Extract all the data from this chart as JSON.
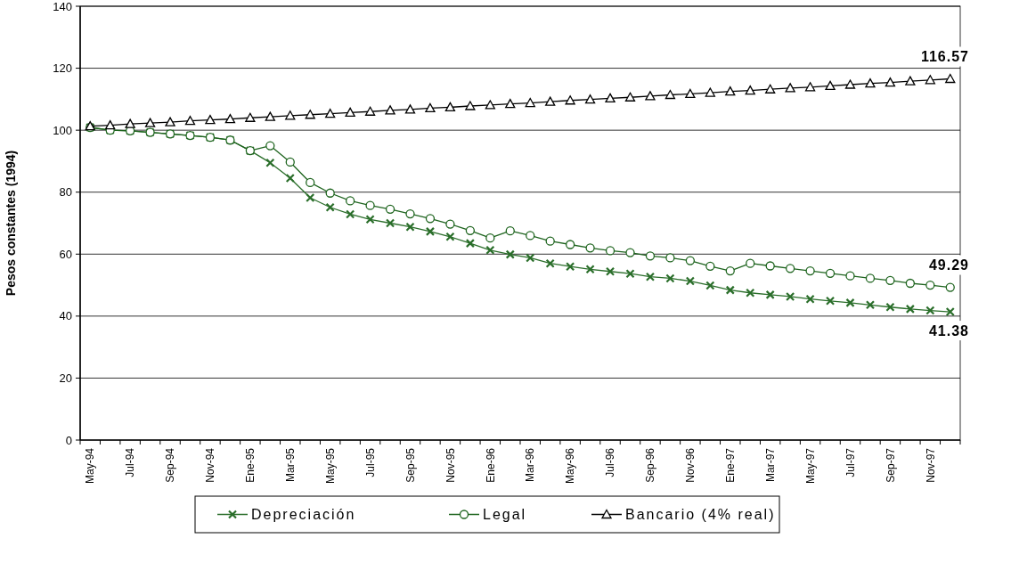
{
  "chart_data": {
    "type": "line",
    "ylabel": "Pesos constantes (1994)",
    "categories": [
      "May-94",
      null,
      "Jul-94",
      null,
      "Sep-94",
      null,
      "Nov-94",
      null,
      "Ene-95",
      null,
      "Mar-95",
      null,
      "May-95",
      null,
      "Jul-95",
      null,
      "Sep-95",
      null,
      "Nov-95",
      null,
      "Ene-96",
      null,
      "Mar-96",
      null,
      "May-96",
      null,
      "Jul-96",
      null,
      "Sep-96",
      null,
      "Nov-96",
      null,
      "Ene-97",
      null,
      "Mar-97",
      null,
      "May-97",
      null,
      "Jul-97",
      null,
      "Sep-97",
      null,
      "Nov-97",
      null
    ],
    "series": [
      {
        "name": "Depreciación",
        "color": "#2a6e2a",
        "marker": "cross",
        "values": [
          100.9,
          100,
          99.8,
          99.3,
          98.8,
          98.3,
          97.7,
          96.8,
          93.4,
          89.5,
          84.5,
          78.2,
          75.1,
          72.9,
          71.2,
          70.0,
          68.8,
          67.3,
          65.6,
          63.5,
          61.3,
          59.9,
          58.8,
          57.0,
          56.0,
          55.1,
          54.4,
          53.7,
          52.7,
          52.2,
          51.3,
          49.9,
          48.4,
          47.5,
          46.9,
          46.3,
          45.5,
          44.9,
          44.3,
          43.6,
          42.9,
          42.3,
          41.8,
          41.38
        ],
        "value_labels": [
          null,
          null,
          null,
          null,
          null,
          null,
          null,
          null,
          null,
          null,
          null,
          null,
          null,
          null,
          null,
          null,
          null,
          null,
          null,
          null,
          null,
          null,
          null,
          null,
          null,
          null,
          null,
          null,
          null,
          null,
          null,
          null,
          null,
          null,
          null,
          null,
          null,
          null,
          null,
          null,
          null,
          null,
          null,
          "41.38"
        ]
      },
      {
        "name": "Legal",
        "color": "#1e641e",
        "marker": "circle",
        "values": [
          100.9,
          100,
          99.8,
          99.3,
          98.8,
          98.3,
          97.7,
          96.8,
          93.4,
          95.0,
          89.7,
          83.1,
          79.7,
          77.2,
          75.7,
          74.5,
          73.0,
          71.5,
          69.7,
          67.6,
          65.2,
          67.5,
          66.0,
          64.2,
          63.1,
          62.0,
          61.1,
          60.5,
          59.4,
          58.8,
          57.9,
          56.1,
          54.6,
          57.0,
          56.2,
          55.4,
          54.6,
          53.8,
          53.0,
          52.2,
          51.5,
          50.6,
          50.0,
          49.29
        ],
        "value_labels": [
          null,
          null,
          null,
          null,
          null,
          null,
          null,
          null,
          null,
          null,
          null,
          null,
          null,
          null,
          null,
          null,
          null,
          null,
          null,
          null,
          null,
          null,
          null,
          null,
          null,
          null,
          null,
          null,
          null,
          null,
          null,
          null,
          null,
          null,
          null,
          null,
          null,
          null,
          null,
          null,
          null,
          null,
          null,
          "49.29"
        ]
      },
      {
        "name": "Bancario (4% real)",
        "color": "#000000",
        "marker": "triangle",
        "values": [
          101.3,
          101.6,
          102.0,
          102.3,
          102.6,
          103.0,
          103.3,
          103.6,
          104.0,
          104.3,
          104.7,
          105.0,
          105.3,
          105.7,
          106.0,
          106.4,
          106.7,
          107.1,
          107.4,
          107.8,
          108.1,
          108.5,
          108.8,
          109.2,
          109.6,
          109.9,
          110.3,
          110.6,
          111.0,
          111.4,
          111.7,
          112.1,
          112.5,
          112.8,
          113.2,
          113.6,
          113.9,
          114.3,
          114.7,
          115.1,
          115.4,
          115.8,
          116.2,
          116.57
        ],
        "value_labels": [
          null,
          null,
          null,
          null,
          null,
          null,
          null,
          null,
          null,
          null,
          null,
          null,
          null,
          null,
          null,
          null,
          null,
          null,
          null,
          null,
          null,
          null,
          null,
          null,
          null,
          null,
          null,
          null,
          null,
          null,
          null,
          null,
          null,
          null,
          null,
          null,
          null,
          null,
          null,
          null,
          null,
          null,
          null,
          "116.57"
        ]
      }
    ],
    "ylim": [
      0,
      140
    ],
    "yticks": [
      0,
      20,
      40,
      60,
      80,
      100,
      120,
      140
    ],
    "grid": "y",
    "legend": "bottom"
  }
}
